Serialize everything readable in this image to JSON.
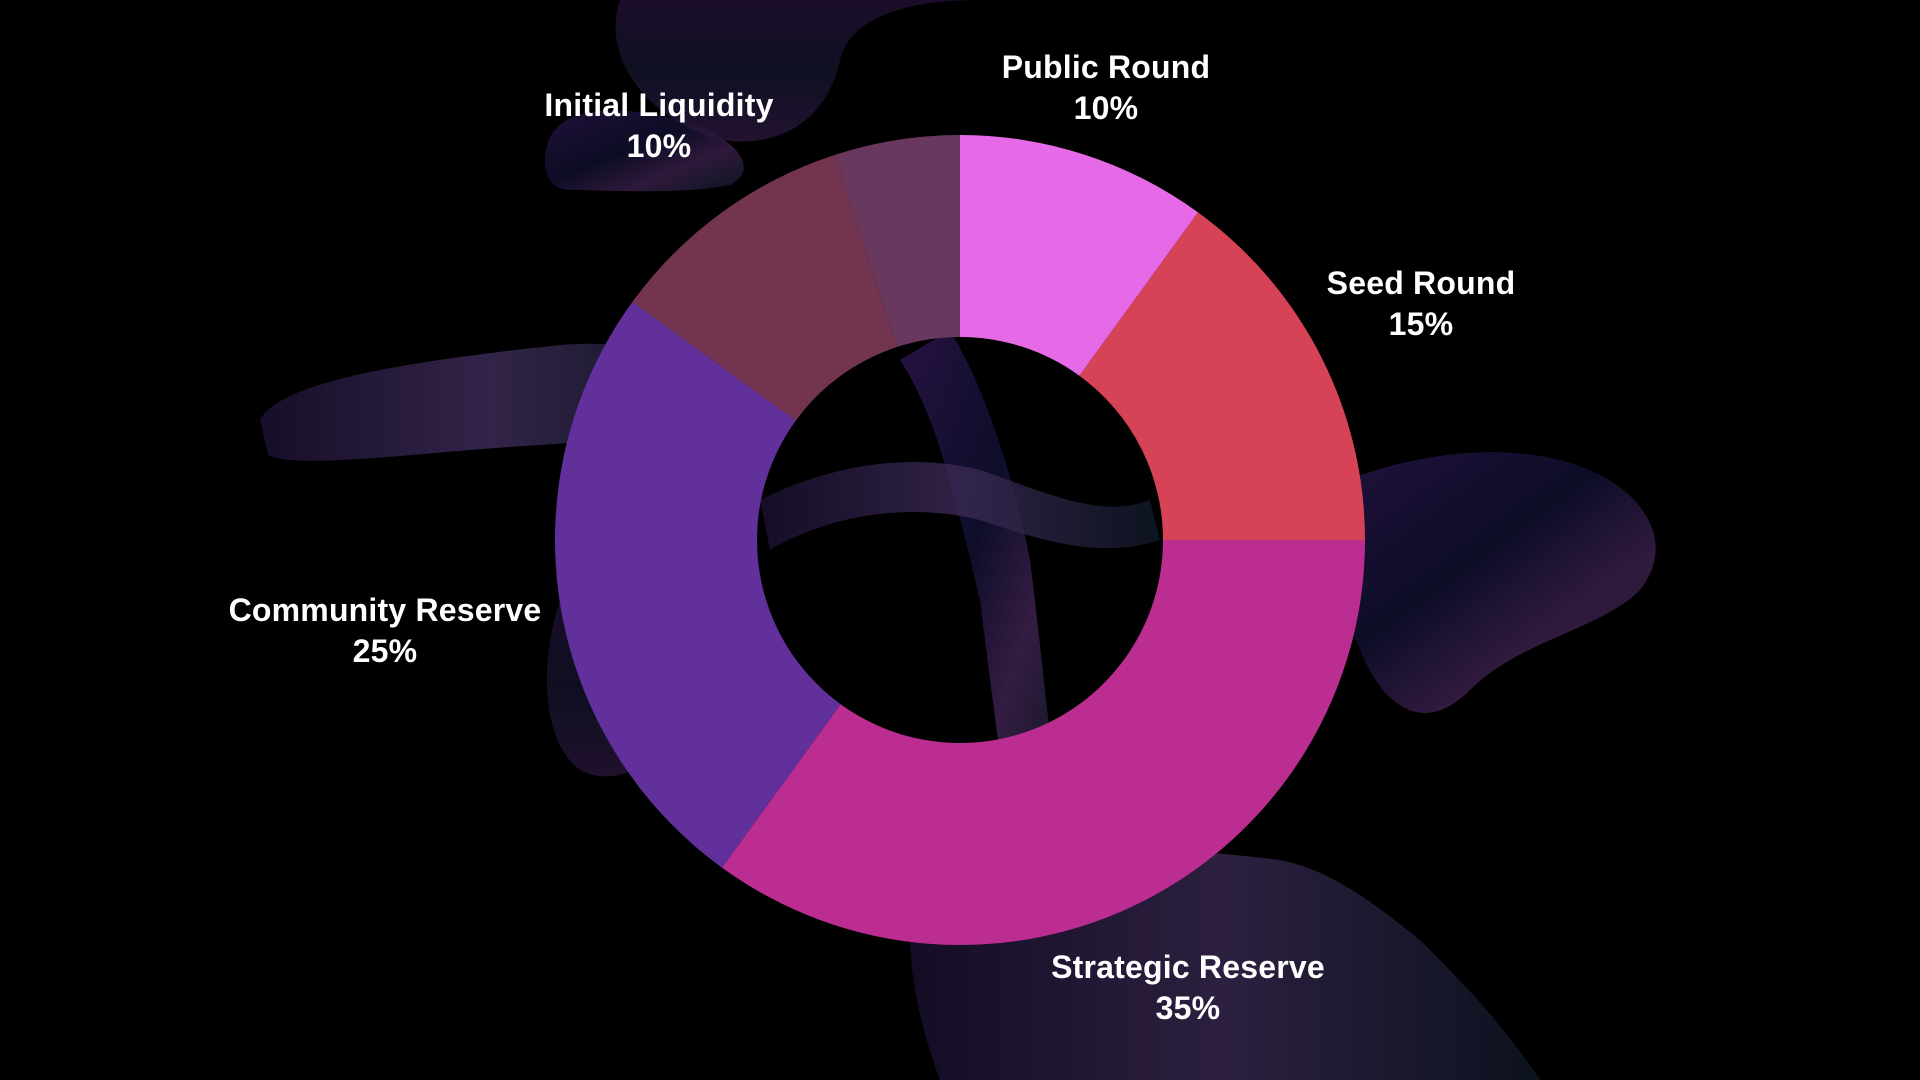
{
  "chart_data": {
    "type": "pie",
    "variant": "donut",
    "slices": [
      {
        "label": "Public Round",
        "percent_label": "10%",
        "value": 10,
        "color": "#E66AE8"
      },
      {
        "label": "Seed Round",
        "percent_label": "15%",
        "value": 15,
        "color": "#D64357"
      },
      {
        "label": "Strategic Reserve",
        "percent_label": "35%",
        "value": 35,
        "color": "#BB2D91"
      },
      {
        "label": "Community Reserve",
        "percent_label": "25%",
        "value": 25,
        "color": "#61309A"
      },
      {
        "label": "Initial Liquidity",
        "percent_label": "10%",
        "value": 10,
        "color": "#73344F"
      },
      {
        "label": "",
        "percent_label": "",
        "value": 5,
        "color": "#68385F"
      }
    ],
    "start_angle": "top",
    "direction": "clockwise",
    "background": "#000000",
    "label_color": "#FFFFFF",
    "legend": "none"
  }
}
